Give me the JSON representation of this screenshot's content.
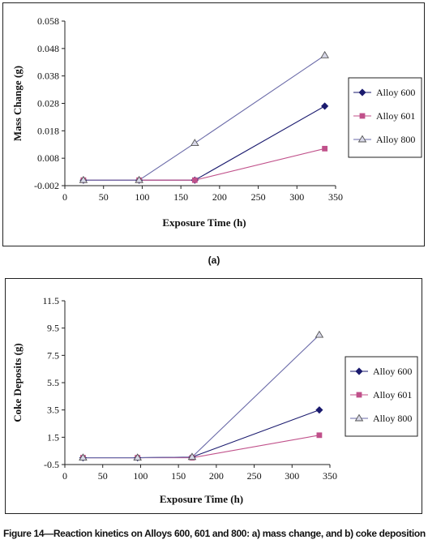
{
  "panel_label": "(a)",
  "caption": "Figure 14—Reaction kinetics on Alloys 600, 601 and 800: a) mass change, and b) coke deposition",
  "chart_data": [
    {
      "type": "line",
      "title": "",
      "xlabel": "Exposure Time (h)",
      "ylabel": "Mass Change (g)",
      "xlim": [
        0,
        350
      ],
      "ylim": [
        -0.002,
        0.058
      ],
      "xticks": [
        "0",
        "50",
        "100",
        "150",
        "200",
        "250",
        "300",
        "350"
      ],
      "xtick_values": [
        0,
        50,
        100,
        150,
        200,
        250,
        300,
        350
      ],
      "yticks": [
        "-0.002",
        "0.008",
        "0.018",
        "0.028",
        "0.038",
        "0.048",
        "0.058"
      ],
      "ytick_values": [
        -0.002,
        0.008,
        0.018,
        0.028,
        0.038,
        0.048,
        0.058
      ],
      "grid": false,
      "legend_position": "right",
      "series": [
        {
          "name": "Alloy 600",
          "color": "#1a1a6e",
          "marker": "diamond",
          "x": [
            24,
            96,
            168,
            336
          ],
          "y": [
            0.0,
            0.0,
            0.0,
            0.027
          ]
        },
        {
          "name": "Alloy 601",
          "color": "#c0508a",
          "marker": "square",
          "x": [
            24,
            96,
            168,
            336
          ],
          "y": [
            0.0,
            0.0,
            0.0,
            0.0115
          ]
        },
        {
          "name": "Alloy 800",
          "color": "#6a6aa8",
          "marker": "triangle",
          "x": [
            24,
            96,
            168,
            336
          ],
          "y": [
            0.0,
            0.0,
            0.0135,
            0.0455
          ]
        }
      ]
    },
    {
      "type": "line",
      "title": "",
      "xlabel": "Exposure Time (h)",
      "ylabel": "Coke Deposits (g)",
      "xlim": [
        0,
        350
      ],
      "ylim": [
        -0.5,
        11.5
      ],
      "xticks": [
        "0",
        "50",
        "100",
        "150",
        "200",
        "250",
        "300",
        "350"
      ],
      "xtick_values": [
        0,
        50,
        100,
        150,
        200,
        250,
        300,
        350
      ],
      "yticks": [
        "-0.5",
        "1.5",
        "3.5",
        "5.5",
        "7.5",
        "9.5",
        "11.5"
      ],
      "ytick_values": [
        -0.5,
        1.5,
        3.5,
        5.5,
        7.5,
        9.5,
        11.5
      ],
      "grid": false,
      "legend_position": "right",
      "series": [
        {
          "name": "Alloy 600",
          "color": "#1a1a6e",
          "marker": "diamond",
          "x": [
            24,
            96,
            168,
            336
          ],
          "y": [
            0.0,
            0.0,
            0.05,
            3.5
          ]
        },
        {
          "name": "Alloy 601",
          "color": "#c0508a",
          "marker": "square",
          "x": [
            24,
            96,
            168,
            336
          ],
          "y": [
            0.0,
            0.0,
            0.0,
            1.65
          ]
        },
        {
          "name": "Alloy 800",
          "color": "#6a6aa8",
          "marker": "triangle",
          "x": [
            24,
            96,
            168,
            336
          ],
          "y": [
            0.0,
            0.0,
            0.05,
            9.0
          ]
        }
      ]
    }
  ]
}
